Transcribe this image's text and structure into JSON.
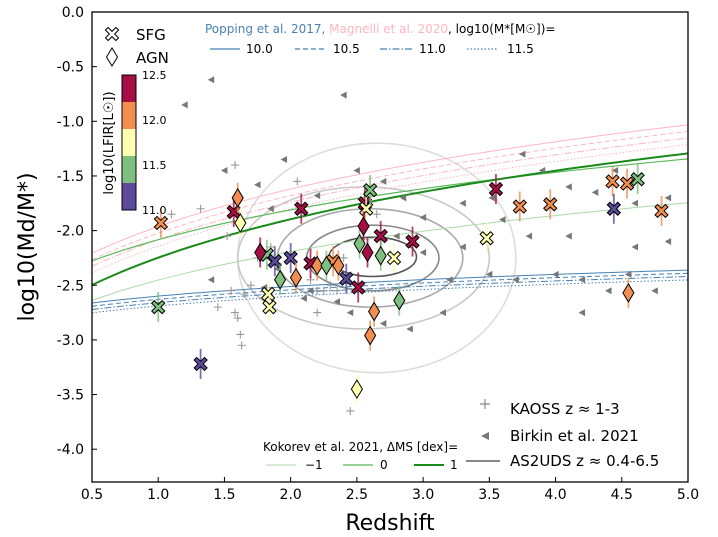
{
  "chart_data": {
    "type": "scatter",
    "xlabel": "Redshift",
    "ylabel": "log10(Md/M*)",
    "xlim": [
      0.5,
      5.0
    ],
    "ylim": [
      -4.3,
      0.0
    ],
    "xticks": [
      "0.5",
      "1.0",
      "1.5",
      "2.0",
      "2.5",
      "3.0",
      "3.5",
      "4.0",
      "4.5",
      "5.0"
    ],
    "yticks": [
      "0.0",
      "-0.5",
      "-1.0",
      "-1.5",
      "-2.0",
      "-2.5",
      "-3.0",
      "-3.5",
      "-4.0"
    ],
    "colorbar": {
      "label": "log10(LFIR[L☉])",
      "range": [
        11.0,
        12.5
      ],
      "ticks": [
        "12.5",
        "12.0",
        "11.5",
        "11.0"
      ],
      "colors": [
        "#5b4a9b",
        "#7fbf7f",
        "#ffffb2",
        "#f28e50",
        "#a50f45"
      ]
    },
    "legends": {
      "marker_legend": [
        {
          "symbol": "cross",
          "label": "SFG"
        },
        {
          "symbol": "diamond",
          "label": "AGN"
        }
      ],
      "model_legend": {
        "prefix_popping": "Popping et al. 2017,",
        "prefix_magnelli": " Magnelli et al. 2020",
        "prefix_suffix": ", log10(M*[M☉])=",
        "entries": [
          "10.0",
          "10.5",
          "11.0",
          "11.5"
        ],
        "popping_color": "#4682b4",
        "magnelli_color": "#ffb6c1"
      },
      "kokorev_legend": {
        "title": "Kokorev et al. 2021, ΔMS [dex]=",
        "entries": [
          "−1",
          "0",
          "1"
        ],
        "colors": [
          "#a8dba8",
          "#5cb85c",
          "#1a8a1a"
        ]
      },
      "sample_legend": [
        {
          "symbol": "plus",
          "label": "KAOSS z ≈ 1-3"
        },
        {
          "symbol": "triangle",
          "label": "Birkin et al. 2021"
        },
        {
          "symbol": "line",
          "label": "AS2UDS z ≈ 0.4-6.5"
        }
      ]
    },
    "series": [
      {
        "name": "SFG",
        "marker": "cross",
        "points": [
          {
            "x": 1.0,
            "y": -2.7,
            "L": 11.5
          },
          {
            "x": 1.02,
            "y": -1.93,
            "L": 12.0
          },
          {
            "x": 1.32,
            "y": -3.22,
            "L": 11.0
          },
          {
            "x": 1.57,
            "y": -1.83,
            "L": 12.4
          },
          {
            "x": 1.82,
            "y": -2.22,
            "L": 11.5
          },
          {
            "x": 1.83,
            "y": -2.58,
            "L": 11.7
          },
          {
            "x": 1.84,
            "y": -2.7,
            "L": 11.7
          },
          {
            "x": 1.88,
            "y": -2.28,
            "L": 11.1
          },
          {
            "x": 2.0,
            "y": -2.25,
            "L": 11.0
          },
          {
            "x": 2.08,
            "y": -1.8,
            "L": 12.4
          },
          {
            "x": 2.15,
            "y": -2.3,
            "L": 12.4
          },
          {
            "x": 2.32,
            "y": -2.28,
            "L": 12.0
          },
          {
            "x": 2.42,
            "y": -2.44,
            "L": 11.0
          },
          {
            "x": 2.51,
            "y": -2.52,
            "L": 12.4
          },
          {
            "x": 2.56,
            "y": -1.75,
            "L": 12.4
          },
          {
            "x": 2.57,
            "y": -1.8,
            "L": 11.8
          },
          {
            "x": 2.6,
            "y": -1.63,
            "L": 11.5
          },
          {
            "x": 2.68,
            "y": -2.05,
            "L": 12.4
          },
          {
            "x": 2.78,
            "y": -2.25,
            "L": 11.7
          },
          {
            "x": 2.92,
            "y": -2.1,
            "L": 12.4
          },
          {
            "x": 3.48,
            "y": -2.07,
            "L": 11.7
          },
          {
            "x": 3.55,
            "y": -1.62,
            "L": 12.4
          },
          {
            "x": 3.73,
            "y": -1.78,
            "L": 12.0
          },
          {
            "x": 3.96,
            "y": -1.76,
            "L": 12.0
          },
          {
            "x": 4.43,
            "y": -1.55,
            "L": 12.0
          },
          {
            "x": 4.44,
            "y": -1.8,
            "L": 11.0
          },
          {
            "x": 4.54,
            "y": -1.57,
            "L": 12.0
          },
          {
            "x": 4.62,
            "y": -1.53,
            "L": 11.5
          },
          {
            "x": 4.8,
            "y": -1.82,
            "L": 12.0
          }
        ]
      },
      {
        "name": "AGN",
        "marker": "diamond",
        "points": [
          {
            "x": 1.6,
            "y": -1.7,
            "L": 12.0
          },
          {
            "x": 1.62,
            "y": -1.93,
            "L": 11.7
          },
          {
            "x": 1.77,
            "y": -2.2,
            "L": 12.3
          },
          {
            "x": 1.92,
            "y": -2.45,
            "L": 11.5
          },
          {
            "x": 2.04,
            "y": -2.43,
            "L": 12.0
          },
          {
            "x": 2.2,
            "y": -2.32,
            "L": 12.0
          },
          {
            "x": 2.27,
            "y": -2.32,
            "L": 11.5
          },
          {
            "x": 2.36,
            "y": -2.32,
            "L": 12.0
          },
          {
            "x": 2.5,
            "y": -3.45,
            "L": 11.8
          },
          {
            "x": 2.52,
            "y": -2.12,
            "L": 11.5
          },
          {
            "x": 2.55,
            "y": -1.96,
            "L": 12.4
          },
          {
            "x": 2.58,
            "y": -2.2,
            "L": 12.4
          },
          {
            "x": 2.6,
            "y": -2.96,
            "L": 12.0
          },
          {
            "x": 2.63,
            "y": -2.74,
            "L": 12.0
          },
          {
            "x": 2.68,
            "y": -2.23,
            "L": 11.5
          },
          {
            "x": 2.82,
            "y": -2.64,
            "L": 11.5
          },
          {
            "x": 4.55,
            "y": -2.57,
            "L": 12.0
          }
        ]
      }
    ],
    "kaoss_points": [
      [
        1.32,
        -1.8
      ],
      [
        1.52,
        -2.05
      ],
      [
        1.58,
        -1.4
      ],
      [
        1.55,
        -2.55
      ],
      [
        1.58,
        -2.75
      ],
      [
        1.6,
        -2.8
      ],
      [
        1.62,
        -2.95
      ],
      [
        1.63,
        -3.05
      ],
      [
        1.7,
        -2.5
      ],
      [
        1.75,
        -2.25
      ],
      [
        1.85,
        -2.15
      ],
      [
        1.9,
        -2.3
      ],
      [
        1.45,
        -2.7
      ],
      [
        2.05,
        -1.55
      ],
      [
        2.15,
        -2.45
      ],
      [
        2.2,
        -2.55
      ],
      [
        2.25,
        -2.55
      ],
      [
        2.3,
        -2.5
      ],
      [
        2.35,
        -2.55
      ],
      [
        2.4,
        -2.25
      ],
      [
        2.45,
        -3.65
      ],
      [
        2.6,
        -1.62
      ],
      [
        2.65,
        -1.85
      ],
      [
        2.2,
        -2.75
      ],
      [
        1.65,
        -2.58
      ],
      [
        1.1,
        -1.85
      ]
    ],
    "birkin_points": [
      [
        1.2,
        -0.85
      ],
      [
        1.4,
        -0.62
      ],
      [
        2.4,
        -0.76
      ],
      [
        1.5,
        -1.45
      ],
      [
        1.95,
        -1.35
      ],
      [
        1.75,
        -1.58
      ],
      [
        1.6,
        -1.85
      ],
      [
        1.85,
        -1.8
      ],
      [
        2.2,
        -1.68
      ],
      [
        2.5,
        -1.45
      ],
      [
        2.7,
        -1.55
      ],
      [
        2.8,
        -2.05
      ],
      [
        3.3,
        -1.75
      ],
      [
        3.52,
        -1.7
      ],
      [
        3.75,
        -1.3
      ],
      [
        3.9,
        -1.45
      ],
      [
        4.1,
        -1.6
      ],
      [
        4.3,
        -1.65
      ],
      [
        4.45,
        -1.45
      ],
      [
        4.6,
        -1.75
      ],
      [
        4.85,
        -1.7
      ],
      [
        4.85,
        -2.1
      ],
      [
        4.6,
        -2.15
      ],
      [
        4.55,
        -2.4
      ],
      [
        4.4,
        -2.55
      ],
      [
        4.75,
        -2.55
      ],
      [
        4.2,
        -2.45
      ],
      [
        4.0,
        -2.4
      ],
      [
        3.7,
        -2.45
      ],
      [
        3.5,
        -2.4
      ],
      [
        3.2,
        -2.45
      ],
      [
        3.15,
        -2.75
      ],
      [
        2.9,
        -2.9
      ],
      [
        2.7,
        -2.85
      ],
      [
        2.45,
        -2.75
      ],
      [
        2.35,
        -2.65
      ],
      [
        2.15,
        -2.55
      ],
      [
        1.4,
        -2.45
      ],
      [
        1.9,
        -2.35
      ],
      [
        3.0,
        -2.2
      ],
      [
        3.3,
        -2.15
      ],
      [
        3.8,
        -2.05
      ],
      [
        4.1,
        -2.05
      ],
      [
        3.0,
        -1.88
      ],
      [
        2.85,
        -1.7
      ],
      [
        3.6,
        -1.9
      ],
      [
        1.8,
        -2.52
      ],
      [
        2.1,
        -2.62
      ],
      [
        4.2,
        -2.75
      ]
    ],
    "contours": [
      {
        "cx": 2.65,
        "cy": -2.25,
        "rx": 1.05,
        "ry": 1.05,
        "gray": "#dddddd"
      },
      {
        "cx": 2.55,
        "cy": -2.25,
        "rx": 0.95,
        "ry": 0.65,
        "gray": "#c8c8c8"
      },
      {
        "cx": 2.6,
        "cy": -2.25,
        "rx": 0.7,
        "ry": 0.45,
        "gray": "#a8a8a8"
      },
      {
        "cx": 2.62,
        "cy": -2.25,
        "rx": 0.5,
        "ry": 0.3,
        "gray": "#888888"
      },
      {
        "cx": 2.62,
        "cy": -2.24,
        "rx": 0.33,
        "ry": 0.18,
        "gray": "#555555"
      }
    ]
  }
}
